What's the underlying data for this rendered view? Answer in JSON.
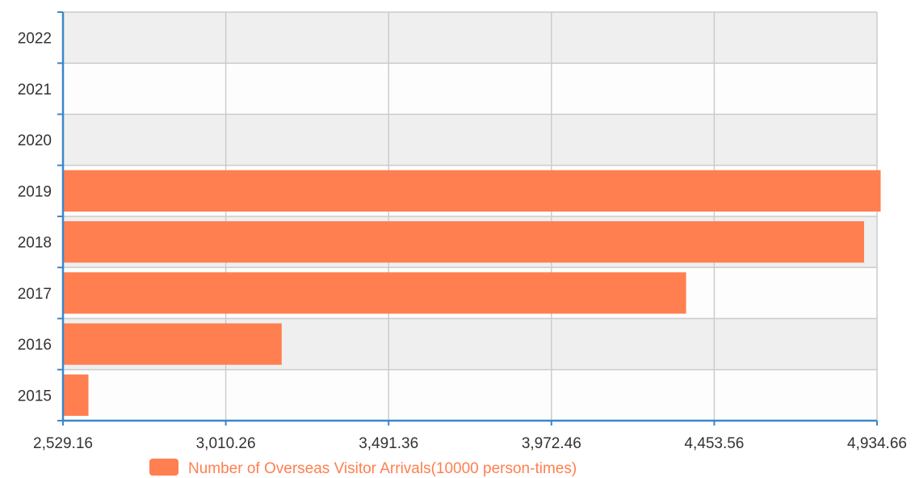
{
  "chart_data": {
    "type": "bar",
    "orientation": "horizontal",
    "categories": [
      "2015",
      "2016",
      "2017",
      "2018",
      "2019",
      "2020",
      "2021",
      "2022"
    ],
    "series": [
      {
        "name": "Number of Overseas Visitor Arrivals(10000 person-times)",
        "values": [
          2602,
          3173,
          4368,
          4894,
          4943,
          null,
          null,
          null
        ]
      }
    ],
    "xlim": [
      2529.16,
      4934.66
    ],
    "x_tick_labels": [
      "2,529.16",
      "3,010.26",
      "3,491.36",
      "3,972.46",
      "4,453.56",
      "4,934.66"
    ],
    "grid": true,
    "legend": "bottom",
    "title": "",
    "xlabel": "",
    "ylabel": ""
  },
  "colors": {
    "bar": "#ff7f50",
    "axis": "#3c87c8",
    "grid": "#cccccc",
    "band_light": "#fdfdfd",
    "band_dark": "#efefef"
  }
}
